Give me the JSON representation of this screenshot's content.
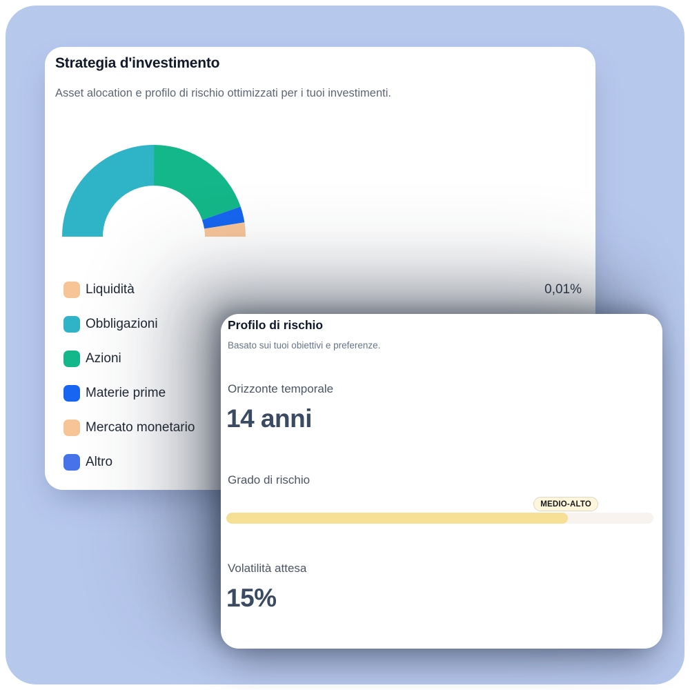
{
  "page": {
    "background_color": "#ffffff",
    "panel_color": "#b7c8ed",
    "card_color": "#ffffff"
  },
  "strategy_card": {
    "title": "Strategia d'investimento",
    "subtitle": "Asset alocation e profilo di rischio ottimizzati per i tuoi investimenti."
  },
  "allocation": {
    "items": [
      {
        "label": "Liquidità",
        "color": "#f7c498",
        "value_label": "0,01%"
      },
      {
        "label": "Obbligazioni",
        "color": "#2eb3c7"
      },
      {
        "label": "Azioni",
        "color": "#14b789"
      },
      {
        "label": "Materie prime",
        "color": "#1765f0"
      },
      {
        "label": "Mercato monetario",
        "color": "#f7c498"
      },
      {
        "label": "Altro",
        "color": "#4673e9"
      }
    ]
  },
  "chart_data": {
    "type": "pie",
    "variant": "half-donut",
    "title": "",
    "start_angle_deg": 180,
    "end_angle_deg": 0,
    "inner_radius_ratio": 0.56,
    "legend_position": "bottom-left",
    "segments": [
      {
        "label": "Liquidità",
        "value": 0.01,
        "color": "#f7c498"
      },
      {
        "label": "Obbligazioni",
        "value": 50.0,
        "color": "#2eb3c7"
      },
      {
        "label": "Azioni",
        "value": 39.4,
        "color": "#14b789"
      },
      {
        "label": "Materie prime",
        "value": 5.6,
        "color": "#1765f0"
      },
      {
        "label": "Mercato monetario",
        "value": 4.99,
        "color": "#f7c498"
      },
      {
        "label": "Altro",
        "value": 0.0,
        "color": "#4673e9"
      }
    ]
  },
  "risk_card": {
    "title": "Profilo di rischio",
    "subtitle": "Basato sui tuoi obiettivi e preferenze.",
    "horizon_label": "Orizzonte temporale",
    "horizon_value": "14 anni",
    "risk_label": "Grado di rischio",
    "risk_badge": "MEDIO-ALTO",
    "risk_percent": 80,
    "bar_fill_color": "#f6e095",
    "bar_track_color": "#f9f3ef",
    "badge_bg_color": "#fdf6dc",
    "badge_border_color": "#ddd8c4",
    "volatility_label": "Volatilità attesa",
    "volatility_value": "15%"
  }
}
